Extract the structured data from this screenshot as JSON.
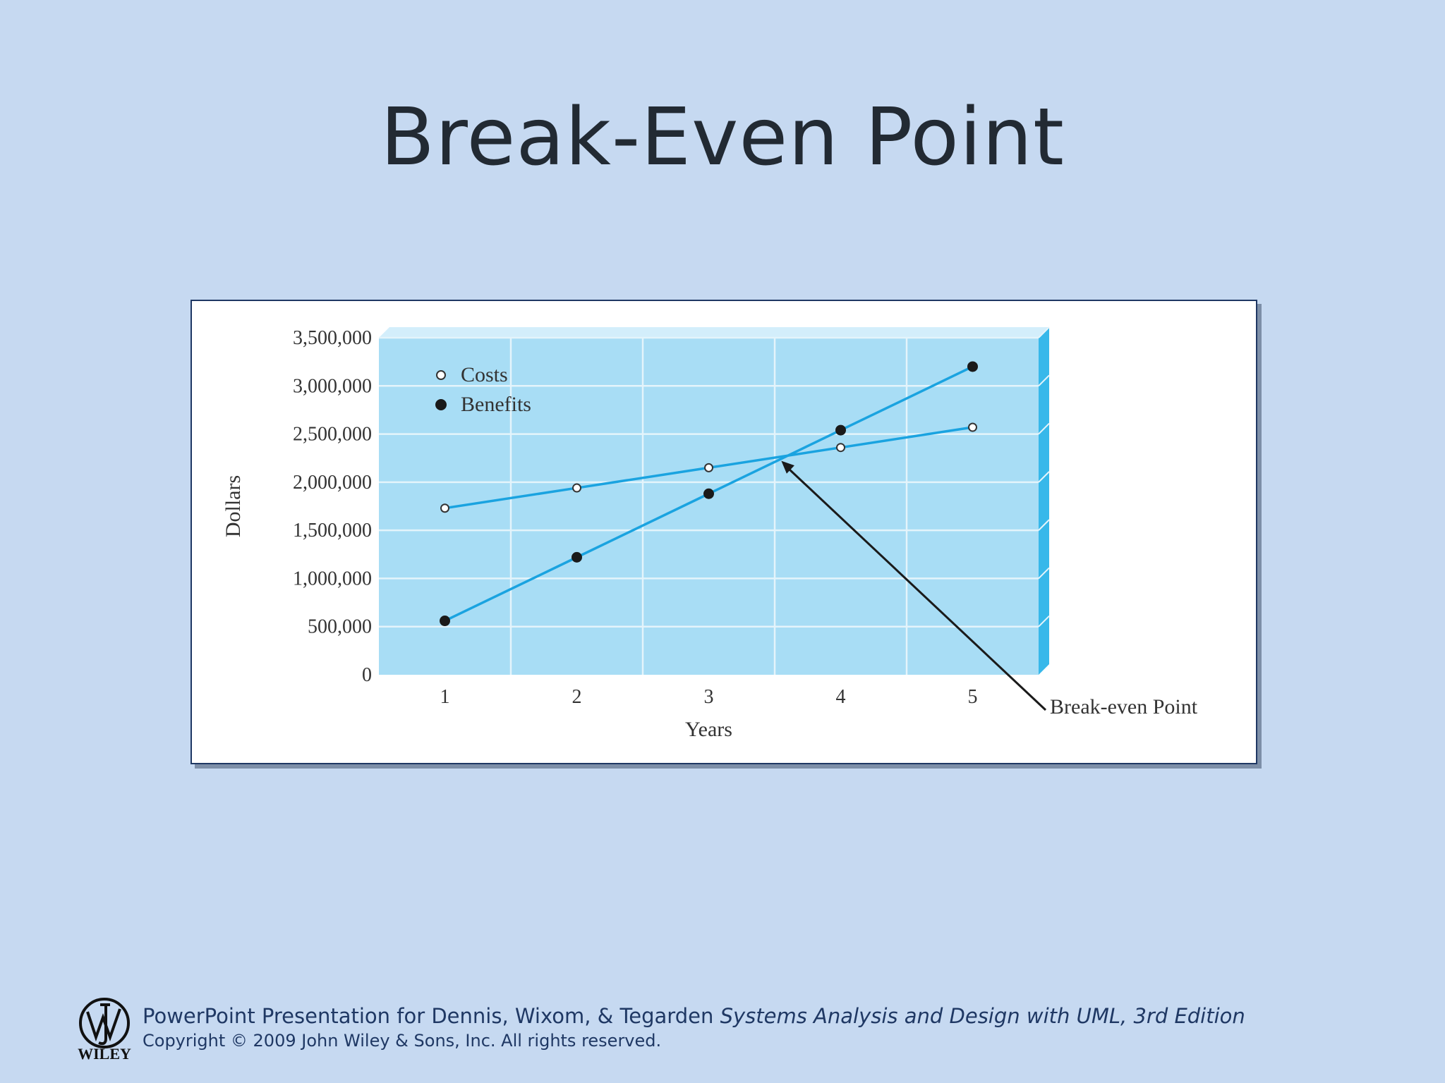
{
  "slide": {
    "title": "Break-Even Point"
  },
  "chart_data": {
    "type": "line",
    "title": "",
    "xlabel": "Years",
    "ylabel": "Dollars",
    "x": [
      1,
      2,
      3,
      4,
      5
    ],
    "x_tick_labels": [
      "1",
      "2",
      "3",
      "4",
      "5"
    ],
    "ylim": [
      0,
      3500000
    ],
    "y_ticks": [
      0,
      500000,
      1000000,
      1500000,
      2000000,
      2500000,
      3000000,
      3500000
    ],
    "y_tick_labels": [
      "0",
      "500,000",
      "1,000,000",
      "1,500,000",
      "2,000,000",
      "2,500,000",
      "3,000,000",
      "3,500,000"
    ],
    "grid": true,
    "legend_position": "top-left",
    "series": [
      {
        "name": "Costs",
        "marker": "open-circle",
        "values": [
          1730000,
          1940000,
          2150000,
          2360000,
          2570000
        ]
      },
      {
        "name": "Benefits",
        "marker": "filled-circle",
        "values": [
          560000,
          1220000,
          1880000,
          2540000,
          3200000
        ]
      }
    ],
    "annotation": {
      "text": "Break-even Point",
      "x": 3.55,
      "y": 2280000
    },
    "colors": {
      "line": "#1aa3e0",
      "plot_bg": "#a8ddf5",
      "grid": "#e4f4fb",
      "side": "#37b8ea",
      "top": "#d3eefb",
      "marker_dark": "#1a1a1a",
      "arrow": "#1a1a1a"
    }
  },
  "footer": {
    "logo_text": "WILEY",
    "line1_prefix": "PowerPoint Presentation for Dennis, Wixom, & Tegarden ",
    "line1_book": "Systems Analysis and Design with UML, 3rd Edition",
    "line2": "Copyright © 2009 John Wiley & Sons, Inc.  All rights reserved."
  }
}
